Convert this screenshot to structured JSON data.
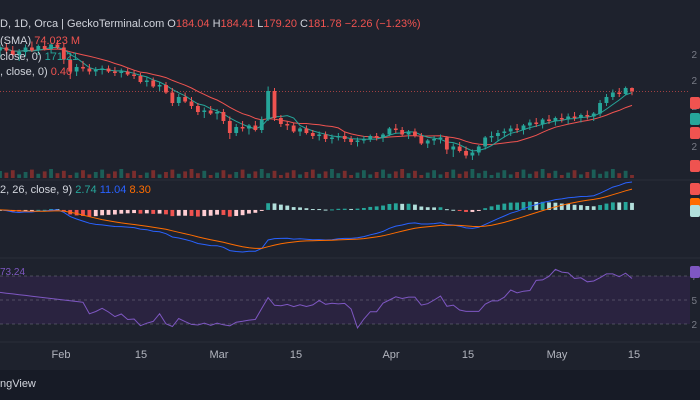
{
  "legend": {
    "main": {
      "symbol": "D, 1D, Orca | GeckoTerminal.com",
      "o_label": "O",
      "o": "184.04",
      "h_label": "H",
      "h": "184.41",
      "l_label": "L",
      "l": "179.20",
      "c_label": "C",
      "c": "181.78",
      "change": "−2.26 (−1.23%)"
    },
    "volume": {
      "label": "(SMA)",
      "value": "74.023 M"
    },
    "ma1": {
      "label": "close, 0)",
      "value": "171.21"
    },
    "ma2": {
      "label": ", close, 0)",
      "value": "0.40"
    },
    "macd": {
      "label": "2, 26, close, 9)",
      "macd": "2.74",
      "signal": "11.04",
      "hist": "8.30"
    },
    "rsi": {
      "value": "73.24"
    }
  },
  "x_axis_labels": [
    "Feb",
    "15",
    "Mar",
    "15",
    "Apr",
    "15",
    "May",
    "15"
  ],
  "price_scale_labels": [
    "2",
    "2",
    "2",
    "2",
    "2"
  ],
  "rsi_scale_labels": [
    "7",
    "5",
    "2"
  ],
  "watermark": "ngView",
  "colors": {
    "up": "#26a69a",
    "down": "#ef5350",
    "ma_fast": "#26a69a",
    "ma_slow": "#ef5350",
    "macd_line": "#2962ff",
    "signal_line": "#ff6d00",
    "rsi_line": "#7e57c2",
    "text": "#d1d4dc",
    "grid": "#2a2e39"
  },
  "chart_data": {
    "type": "candlestick",
    "candles": [
      [
        209,
        213,
        205,
        211
      ],
      [
        211,
        214,
        207,
        209
      ],
      [
        209,
        212,
        204,
        206
      ],
      [
        206,
        210,
        202,
        208
      ],
      [
        208,
        213,
        205,
        211
      ],
      [
        211,
        215,
        208,
        209
      ],
      [
        209,
        213,
        206,
        212
      ],
      [
        212,
        214,
        209,
        210
      ],
      [
        210,
        214,
        207,
        213
      ],
      [
        213,
        216,
        210,
        211
      ],
      [
        211,
        214,
        200,
        203
      ],
      [
        203,
        206,
        190,
        195
      ],
      [
        195,
        200,
        192,
        198
      ],
      [
        198,
        202,
        195,
        197
      ],
      [
        197,
        200,
        193,
        195
      ],
      [
        195,
        198,
        192,
        196
      ],
      [
        196,
        199,
        193,
        197
      ],
      [
        197,
        199,
        194,
        195
      ],
      [
        195,
        198,
        192,
        194
      ],
      [
        194,
        197,
        191,
        195
      ],
      [
        195,
        197,
        192,
        193
      ],
      [
        193,
        196,
        190,
        192
      ],
      [
        192,
        194,
        187,
        188
      ],
      [
        188,
        191,
        185,
        189
      ],
      [
        189,
        191,
        184,
        185
      ],
      [
        185,
        188,
        182,
        186
      ],
      [
        186,
        188,
        180,
        181
      ],
      [
        181,
        184,
        172,
        174
      ],
      [
        174,
        180,
        172,
        178
      ],
      [
        178,
        181,
        174,
        175
      ],
      [
        175,
        178,
        170,
        172
      ],
      [
        172,
        174,
        166,
        168
      ],
      [
        168,
        171,
        164,
        169
      ],
      [
        169,
        172,
        166,
        167
      ],
      [
        167,
        170,
        163,
        168
      ],
      [
        168,
        170,
        160,
        162
      ],
      [
        162,
        165,
        150,
        154
      ],
      [
        154,
        160,
        152,
        158
      ],
      [
        158,
        162,
        155,
        157
      ],
      [
        157,
        160,
        153,
        159
      ],
      [
        159,
        162,
        155,
        156
      ],
      [
        156,
        165,
        154,
        163
      ],
      [
        163,
        185,
        162,
        182
      ],
      [
        182,
        184,
        162,
        164
      ],
      [
        164,
        166,
        158,
        160
      ],
      [
        160,
        162,
        156,
        159
      ],
      [
        159,
        161,
        154,
        155
      ],
      [
        155,
        158,
        152,
        157
      ],
      [
        157,
        159,
        153,
        154
      ],
      [
        154,
        156,
        150,
        152
      ],
      [
        152,
        155,
        149,
        153
      ],
      [
        153,
        155,
        148,
        150
      ],
      [
        150,
        153,
        147,
        151
      ],
      [
        151,
        154,
        149,
        152
      ],
      [
        152,
        155,
        148,
        150
      ],
      [
        150,
        152,
        146,
        148
      ],
      [
        148,
        151,
        145,
        149
      ],
      [
        149,
        152,
        147,
        150
      ],
      [
        150,
        153,
        148,
        152
      ],
      [
        152,
        154,
        149,
        151
      ],
      [
        151,
        154,
        148,
        153
      ],
      [
        153,
        158,
        152,
        157
      ],
      [
        157,
        160,
        154,
        156
      ],
      [
        156,
        158,
        152,
        153
      ],
      [
        153,
        156,
        150,
        155
      ],
      [
        155,
        157,
        151,
        152
      ],
      [
        152,
        154,
        146,
        147
      ],
      [
        147,
        150,
        144,
        149
      ],
      [
        149,
        152,
        146,
        150
      ],
      [
        150,
        153,
        147,
        151
      ],
      [
        151,
        152,
        140,
        143
      ],
      [
        143,
        147,
        138,
        145
      ],
      [
        145,
        148,
        141,
        142
      ],
      [
        142,
        145,
        137,
        139
      ],
      [
        139,
        143,
        136,
        141
      ],
      [
        141,
        146,
        139,
        145
      ],
      [
        145,
        152,
        143,
        151
      ],
      [
        151,
        155,
        148,
        152
      ],
      [
        152,
        156,
        149,
        154
      ],
      [
        154,
        157,
        151,
        155
      ],
      [
        155,
        159,
        152,
        157
      ],
      [
        157,
        160,
        154,
        156
      ],
      [
        156,
        160,
        153,
        159
      ],
      [
        159,
        163,
        156,
        161
      ],
      [
        161,
        164,
        158,
        160
      ],
      [
        160,
        164,
        157,
        163
      ],
      [
        163,
        166,
        160,
        162
      ],
      [
        162,
        165,
        159,
        164
      ],
      [
        164,
        167,
        161,
        163
      ],
      [
        163,
        167,
        160,
        165
      ],
      [
        165,
        168,
        162,
        164
      ],
      [
        164,
        167,
        161,
        166
      ],
      [
        166,
        169,
        163,
        165
      ],
      [
        165,
        168,
        162,
        167
      ],
      [
        167,
        176,
        165,
        174
      ],
      [
        174,
        180,
        172,
        178
      ],
      [
        178,
        183,
        176,
        181
      ],
      [
        181,
        184,
        178,
        180
      ],
      [
        180,
        185,
        179,
        184
      ],
      [
        184,
        184.41,
        179.2,
        181.78
      ]
    ]
  }
}
